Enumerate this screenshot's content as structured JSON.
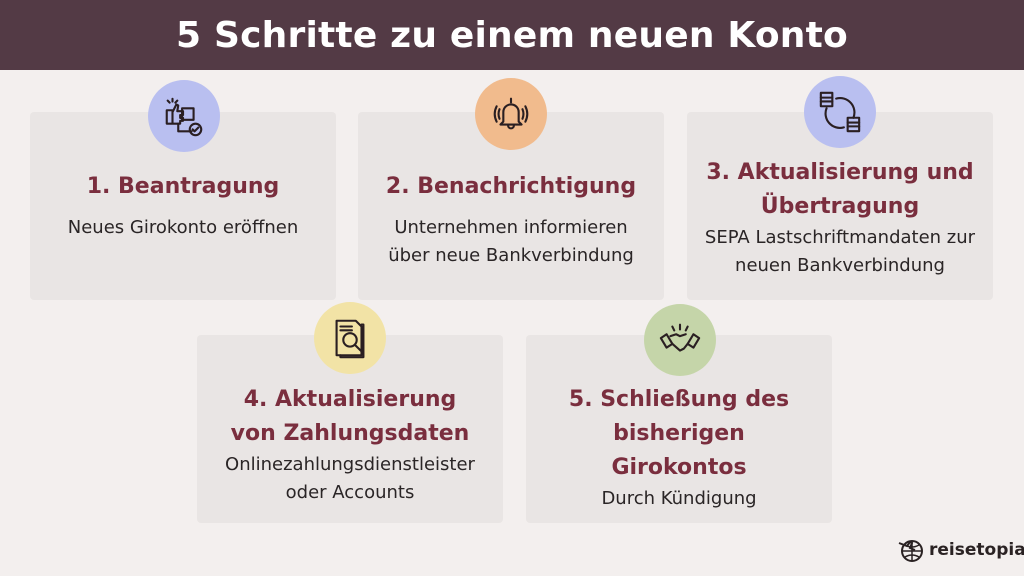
{
  "title": "5 Schritte zu einem neuen Konto",
  "steps": [
    {
      "title": "1. Beantragung",
      "text": "Neues Girokonto eröffnen",
      "icon": "thumbs-up-package-check-icon",
      "color": "#b9bff0"
    },
    {
      "title": "2. Benachrichtigung",
      "text": "Unternehmen informieren über neue Bankverbindung",
      "icon": "bell-icon",
      "color": "#f1bb8d"
    },
    {
      "title": "3. Aktualisierung und Übertragung",
      "text": "SEPA Lastschriftmandaten zur neuen Bankverbindung",
      "icon": "server-transfer-icon",
      "color": "#b9bff0"
    },
    {
      "title": "4. Aktualisierung von Zahlungsdaten",
      "text": "Onlinezahlungsdienstleister oder Accounts",
      "icon": "document-search-icon",
      "color": "#f2e3a6"
    },
    {
      "title": "5. Schließung des bisherigen Girokontos",
      "text": "Durch Kündigung",
      "icon": "handshake-icon",
      "color": "#c5d5a9"
    }
  ],
  "brand": {
    "name": "reisetopia",
    "icon": "globe-plane-icon"
  }
}
